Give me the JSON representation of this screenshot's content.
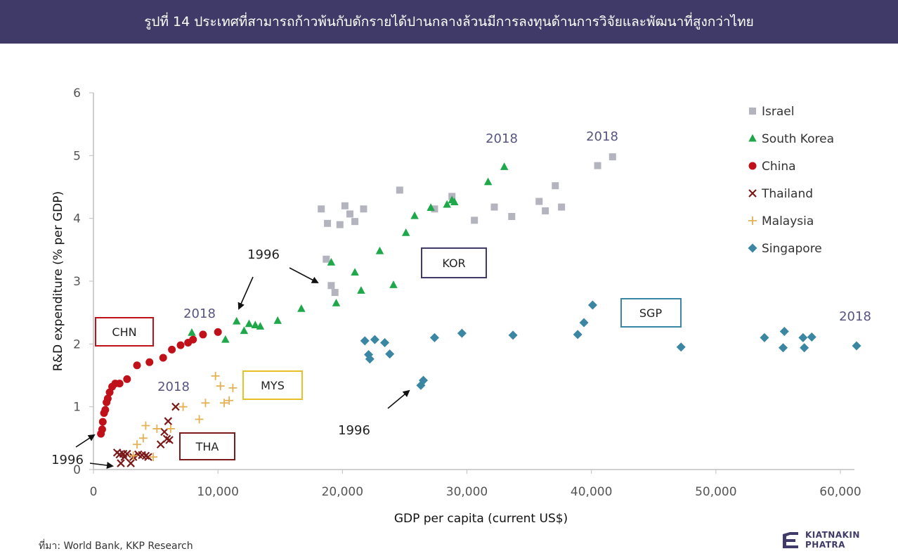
{
  "header": {
    "title": "รูปที่ 14 ประเทศที่สามารถก้าวพ้นกับดักรายได้ปานกลางล้วนมีการลงทุนด้านการวิจัยและพัฒนาที่สูงกว่าไทย"
  },
  "footer": {
    "source": "ที่มา: World Bank, KKP Research",
    "logo_line1": "KIATNAKIN",
    "logo_line2": "PHATRA"
  },
  "colors": {
    "title_bg": "#3f3a67",
    "israel": "#b4b4bf",
    "south_korea": "#1fa84a",
    "china": "#c0101a",
    "thailand": "#7a1a1a",
    "singapore": "#3a86a3",
    "malaysia": "#e4b154",
    "annotation_text": "#555580"
  },
  "chart_data": {
    "type": "scatter",
    "xlabel": "GDP per capita (current US$)",
    "ylabel": "R&D expenditure (% per GDP)",
    "xlim": [
      0,
      60000
    ],
    "ylim": [
      0,
      6
    ],
    "x_ticks": [
      "0",
      "10,000",
      "20,000",
      "30,000",
      "40,000",
      "50,000",
      "60,000"
    ],
    "y_ticks": [
      "0",
      "1",
      "2",
      "3",
      "4",
      "5",
      "6"
    ],
    "legend_position": "top-right",
    "series": [
      {
        "name": "Israel",
        "marker": "square",
        "color": "#b4b4bf",
        "points": [
          [
            18700,
            3.35
          ],
          [
            19100,
            2.93
          ],
          [
            19400,
            2.82
          ],
          [
            18300,
            4.15
          ],
          [
            18800,
            3.92
          ],
          [
            19800,
            3.9
          ],
          [
            20200,
            4.2
          ],
          [
            20600,
            4.07
          ],
          [
            21000,
            3.95
          ],
          [
            21700,
            4.15
          ],
          [
            24600,
            4.45
          ],
          [
            27400,
            4.15
          ],
          [
            28800,
            4.35
          ],
          [
            30600,
            3.97
          ],
          [
            32200,
            4.18
          ],
          [
            33600,
            4.03
          ],
          [
            35800,
            4.27
          ],
          [
            36300,
            4.12
          ],
          [
            37100,
            4.52
          ],
          [
            37600,
            4.18
          ],
          [
            40500,
            4.84
          ],
          [
            41700,
            4.98
          ]
        ]
      },
      {
        "name": "South Korea",
        "marker": "triangle",
        "color": "#1fa84a",
        "points": [
          [
            7900,
            2.18
          ],
          [
            10600,
            2.07
          ],
          [
            11500,
            2.36
          ],
          [
            12100,
            2.21
          ],
          [
            12500,
            2.32
          ],
          [
            13000,
            2.3
          ],
          [
            13400,
            2.28
          ],
          [
            14800,
            2.37
          ],
          [
            16700,
            2.56
          ],
          [
            19100,
            3.3
          ],
          [
            19500,
            2.65
          ],
          [
            21000,
            3.14
          ],
          [
            21500,
            2.85
          ],
          [
            23000,
            3.48
          ],
          [
            24100,
            2.94
          ],
          [
            25100,
            3.77
          ],
          [
            25800,
            4.04
          ],
          [
            27100,
            4.17
          ],
          [
            28400,
            4.22
          ],
          [
            28800,
            4.29
          ],
          [
            29000,
            4.26
          ],
          [
            31700,
            4.58
          ],
          [
            33000,
            4.82
          ]
        ]
      },
      {
        "name": "China",
        "marker": "circle",
        "color": "#c0101a",
        "points": [
          [
            600,
            0.57
          ],
          [
            700,
            0.64
          ],
          [
            750,
            0.76
          ],
          [
            850,
            0.9
          ],
          [
            950,
            0.95
          ],
          [
            1050,
            1.07
          ],
          [
            1150,
            1.13
          ],
          [
            1300,
            1.23
          ],
          [
            1500,
            1.32
          ],
          [
            1750,
            1.37
          ],
          [
            2100,
            1.37
          ],
          [
            2700,
            1.44
          ],
          [
            3500,
            1.66
          ],
          [
            4500,
            1.71
          ],
          [
            5600,
            1.78
          ],
          [
            6300,
            1.91
          ],
          [
            7000,
            1.98
          ],
          [
            7600,
            2.02
          ],
          [
            8000,
            2.07
          ],
          [
            8800,
            2.15
          ],
          [
            10000,
            2.19
          ]
        ]
      },
      {
        "name": "Thailand",
        "marker": "x",
        "color": "#7a1a1a",
        "points": [
          [
            1900,
            0.27
          ],
          [
            2400,
            0.25
          ],
          [
            2700,
            0.25
          ],
          [
            2100,
            0.24
          ],
          [
            2200,
            0.1
          ],
          [
            2500,
            0.2
          ],
          [
            3000,
            0.1
          ],
          [
            3200,
            0.2
          ],
          [
            3600,
            0.24
          ],
          [
            3900,
            0.23
          ],
          [
            4200,
            0.22
          ],
          [
            4400,
            0.2
          ],
          [
            5400,
            0.4
          ],
          [
            5700,
            0.6
          ],
          [
            5900,
            0.49
          ],
          [
            6100,
            0.47
          ],
          [
            6000,
            0.77
          ],
          [
            6600,
            1.0
          ]
        ]
      },
      {
        "name": "Malaysia",
        "marker": "plus",
        "color": "#e4b154",
        "points": [
          [
            3200,
            0.22
          ],
          [
            3500,
            0.4
          ],
          [
            4000,
            0.5
          ],
          [
            4200,
            0.7
          ],
          [
            4800,
            0.2
          ],
          [
            5100,
            0.65
          ],
          [
            6200,
            0.65
          ],
          [
            7200,
            1.0
          ],
          [
            8500,
            0.8
          ],
          [
            9000,
            1.06
          ],
          [
            9800,
            1.49
          ],
          [
            10200,
            1.33
          ],
          [
            10500,
            1.06
          ],
          [
            10900,
            1.1
          ],
          [
            11200,
            1.3
          ]
        ]
      },
      {
        "name": "Singapore",
        "marker": "diamond",
        "color": "#3a86a3",
        "points": [
          [
            26300,
            1.34
          ],
          [
            26500,
            1.42
          ],
          [
            21800,
            2.05
          ],
          [
            22100,
            1.83
          ],
          [
            22200,
            1.76
          ],
          [
            22600,
            2.07
          ],
          [
            23400,
            2.02
          ],
          [
            23800,
            1.84
          ],
          [
            27400,
            2.1
          ],
          [
            29600,
            2.17
          ],
          [
            33700,
            2.14
          ],
          [
            38900,
            2.15
          ],
          [
            39400,
            2.34
          ],
          [
            40100,
            2.62
          ],
          [
            47200,
            1.95
          ],
          [
            53900,
            2.1
          ],
          [
            55400,
            1.94
          ],
          [
            55500,
            2.2
          ],
          [
            57000,
            2.1
          ],
          [
            57100,
            1.94
          ],
          [
            57700,
            2.11
          ],
          [
            61300,
            1.97
          ]
        ]
      }
    ],
    "annotations": {
      "chn_box": "CHN",
      "tha_box": "THA",
      "mys_box": "MYS",
      "kor_box": "KOR",
      "sgp_box": "SGP",
      "chn_2018": "2018",
      "mys_2018": "2018",
      "kor_2018": "2018",
      "isr_2018": "2018",
      "sgp_2018": "2018",
      "chn_1996": "1996",
      "tha_1996": "1996",
      "kor_1996": "1996",
      "sgp_1996": "1996"
    }
  }
}
